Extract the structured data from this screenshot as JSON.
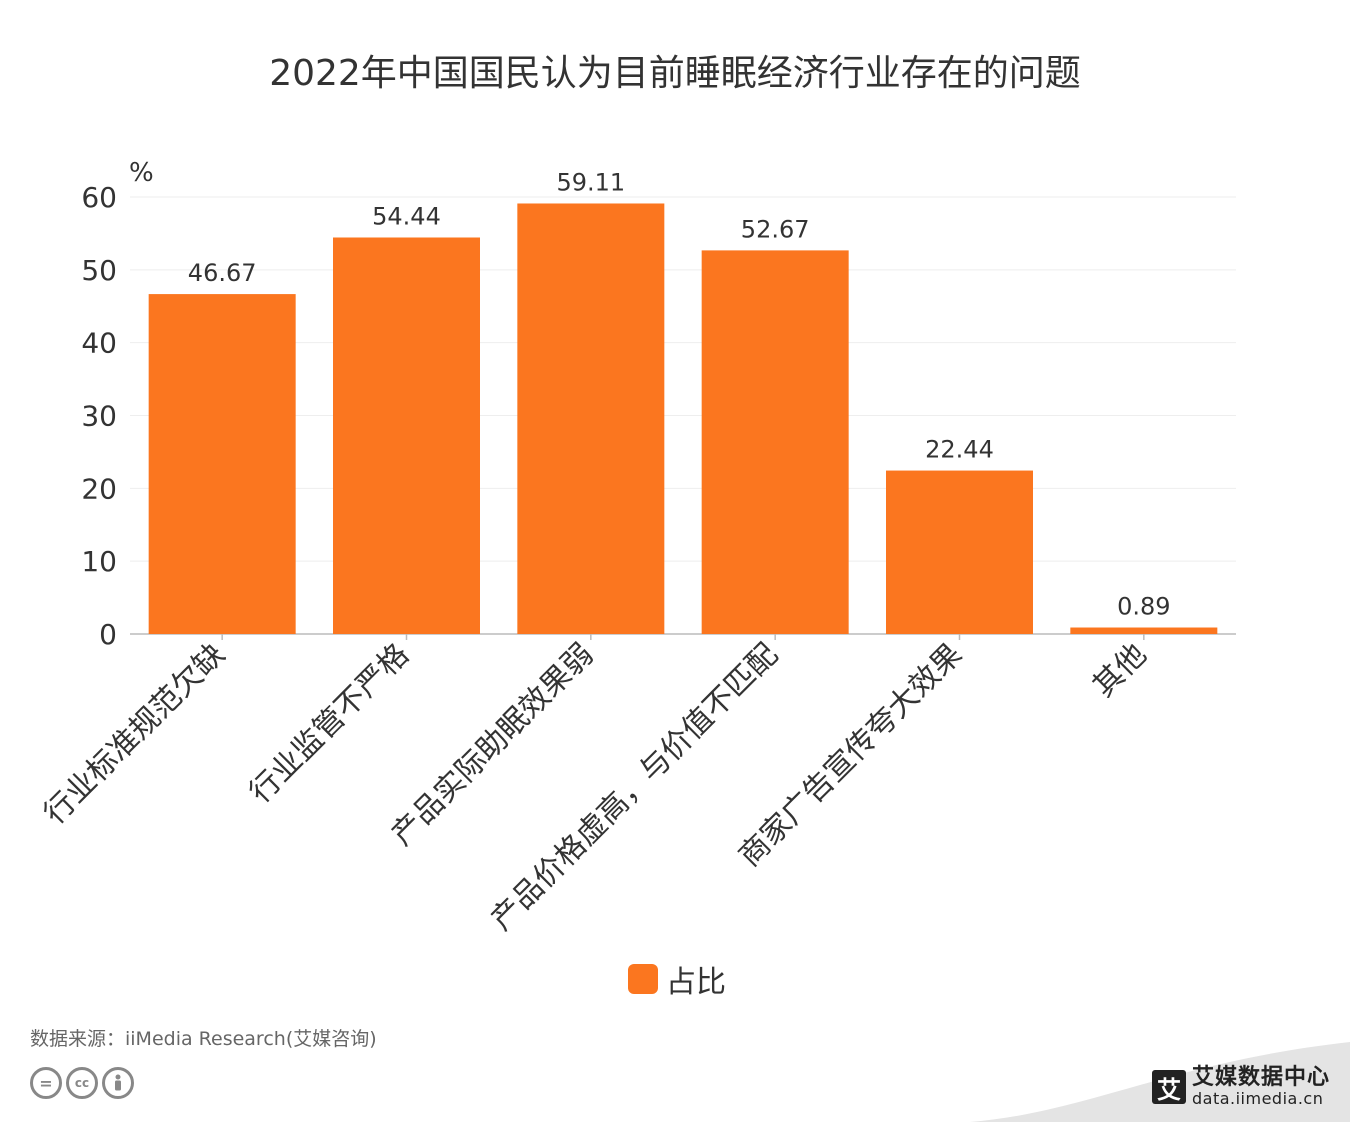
{
  "title": "2022年中国国民认为目前睡眠经济行业存在的问题",
  "unit": "%",
  "colors": {
    "bar": "#FB761F",
    "axis": "#BBBBBB",
    "grid": "#EEEEEE"
  },
  "chart_data": {
    "type": "bar",
    "title": "2022年中国国民认为目前睡眠经济行业存在的问题",
    "ylabel": "%",
    "ylim": [
      0,
      60
    ],
    "yticks": [
      0,
      10,
      20,
      30,
      40,
      50,
      60
    ],
    "grid": true,
    "legend_position": "bottom",
    "categories": [
      "行业标准规范欠缺",
      "行业监管不严格",
      "产品实际助眠效果弱",
      "产品价格虚高，与价值不匹配",
      "商家广告宣传夸大效果",
      "其他"
    ],
    "series": [
      {
        "name": "占比",
        "values": [
          46.67,
          54.44,
          59.11,
          52.67,
          22.44,
          0.89
        ]
      }
    ]
  },
  "source": "数据来源：iiMedia Research(艾媒咨询)",
  "license_icons": [
    "equals-icon",
    "cc-icon",
    "person-icon"
  ],
  "brand": {
    "name": "艾媒数据中心",
    "url": "data.iimedia.cn",
    "logo_glyph": "艾"
  }
}
